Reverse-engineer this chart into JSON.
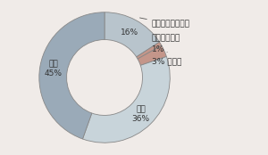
{
  "slices": [
    {
      "label": "不動産、財団抵当",
      "value": 16,
      "color": "#b8c4cc",
      "pct": "16%"
    },
    {
      "label": "有価証券担保",
      "value": 1,
      "color": "#c4968a",
      "pct": "1%"
    },
    {
      "label": "その他",
      "value": 3,
      "color": "#c4968a",
      "pct": "3%"
    },
    {
      "label": "保証",
      "value": 36,
      "color": "#c8d4da",
      "pct": "36%"
    },
    {
      "label": "信用",
      "value": 45,
      "color": "#9aaab8",
      "pct": "45%"
    }
  ],
  "background_color": "#f0ebe8",
  "donut_width": 0.42,
  "edge_color": "#888888",
  "edge_lw": 0.6,
  "font_size": 6.5,
  "text_color": "#333333"
}
